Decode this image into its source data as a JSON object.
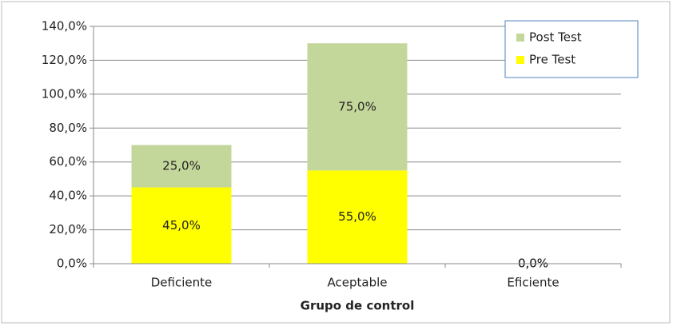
{
  "chart_data": {
    "type": "stacked_bar",
    "x_label": "Grupo de control",
    "categories": [
      "Deficiente",
      "Aceptable",
      "Eficiente"
    ],
    "series": [
      {
        "name": "Pre Test",
        "color": "#ffff00",
        "values": [
          45,
          55,
          0
        ],
        "value_labels": [
          "45,0%",
          "55,0%",
          "0,0%"
        ]
      },
      {
        "name": "Post Test",
        "color": "#c4d79b",
        "values": [
          25,
          75,
          0
        ],
        "value_labels": [
          "25,0%",
          "75,0%",
          "0,0%"
        ]
      }
    ],
    "ylim": [
      0,
      140
    ],
    "yticks": [
      {
        "value": 0,
        "label": "0,0%"
      },
      {
        "value": 20,
        "label": "20,0%"
      },
      {
        "value": 40,
        "label": "40,0%"
      },
      {
        "value": 60,
        "label": "60,0%"
      },
      {
        "value": 80,
        "label": "80,0%"
      },
      {
        "value": 100,
        "label": "100,0%"
      },
      {
        "value": 120,
        "label": "120,0%"
      },
      {
        "value": 140,
        "label": "140,0%"
      }
    ],
    "grid": true,
    "legend_position": "top-right"
  }
}
